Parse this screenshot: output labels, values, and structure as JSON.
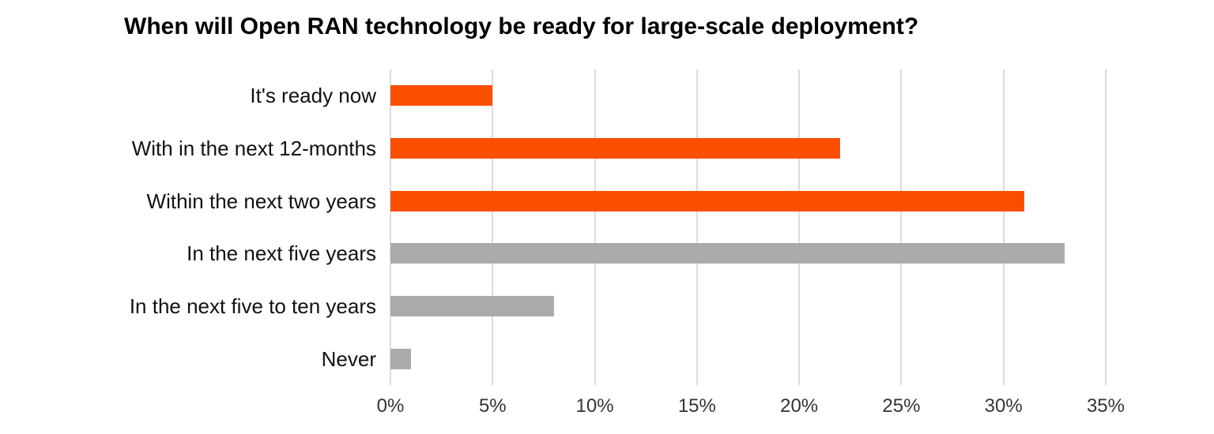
{
  "title": "When will Open RAN technology be ready for large-scale deployment?",
  "colors": {
    "orange": "#FA4F00",
    "gray": "#ABABAB",
    "gridline": "#DCDCDC",
    "title_text": "#000000",
    "category_text": "#111111",
    "tick_text": "#333333",
    "background": "#FFFFFF"
  },
  "chart_data": {
    "type": "bar",
    "orientation": "horizontal",
    "title": "When will Open RAN technology be ready for large-scale deployment?",
    "categories": [
      "It's ready now",
      "With in the next 12-months",
      "Within the next two years",
      "In the next five years",
      "In the next five to ten years",
      "Never"
    ],
    "values": [
      5,
      22,
      31,
      33,
      8,
      1
    ],
    "value_unit": "%",
    "bar_colors": [
      "#FA4F00",
      "#FA4F00",
      "#FA4F00",
      "#ABABAB",
      "#ABABAB",
      "#ABABAB"
    ],
    "xlabel": "",
    "ylabel": "",
    "x_ticks": [
      "0%",
      "5%",
      "10%",
      "15%",
      "20%",
      "25%",
      "30%",
      "35%"
    ],
    "x_tick_values": [
      0,
      5,
      10,
      15,
      20,
      25,
      30,
      35
    ],
    "xlim": [
      0,
      37.7
    ],
    "grid": "vertical-only",
    "legend": "none"
  }
}
